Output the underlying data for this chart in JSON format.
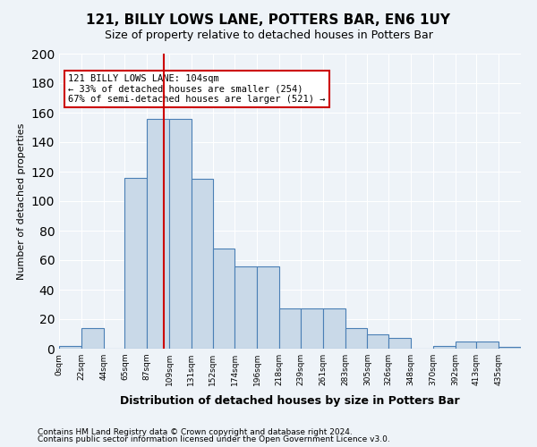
{
  "title": "121, BILLY LOWS LANE, POTTERS BAR, EN6 1UY",
  "subtitle": "Size of property relative to detached houses in Potters Bar",
  "xlabel": "Distribution of detached houses by size in Potters Bar",
  "ylabel": "Number of detached properties",
  "bin_labels": [
    "0sqm",
    "22sqm",
    "44sqm",
    "65sqm",
    "87sqm",
    "109sqm",
    "131sqm",
    "152sqm",
    "174sqm",
    "196sqm",
    "218sqm",
    "239sqm",
    "261sqm",
    "283sqm",
    "305sqm",
    "326sqm",
    "348sqm",
    "370sqm",
    "392sqm",
    "413sqm",
    "435sqm"
  ],
  "bin_edges": [
    0,
    22,
    44,
    65,
    87,
    109,
    131,
    152,
    174,
    196,
    218,
    239,
    261,
    283,
    305,
    326,
    348,
    370,
    392,
    413,
    435,
    457
  ],
  "bar_heights": [
    2,
    14,
    0,
    116,
    156,
    156,
    115,
    68,
    56,
    56,
    27,
    27,
    27,
    14,
    10,
    7,
    0,
    2,
    5,
    5,
    1
  ],
  "bar_color": "#c9d9e8",
  "bar_edge_color": "#4a7fb5",
  "reference_line_x": 104,
  "xmin": 0,
  "xmax": 457,
  "ymin": 0,
  "ymax": 200,
  "annotation_text": "121 BILLY LOWS LANE: 104sqm\n← 33% of detached houses are smaller (254)\n67% of semi-detached houses are larger (521) →",
  "annotation_box_color": "#ffffff",
  "annotation_box_edge": "#cc0000",
  "ref_line_color": "#cc0000",
  "footer1": "Contains HM Land Registry data © Crown copyright and database right 2024.",
  "footer2": "Contains public sector information licensed under the Open Government Licence v3.0.",
  "bg_color": "#eef3f8",
  "plot_bg_color": "#eef3f8",
  "yticks": [
    0,
    20,
    40,
    60,
    80,
    100,
    120,
    140,
    160,
    180,
    200
  ]
}
